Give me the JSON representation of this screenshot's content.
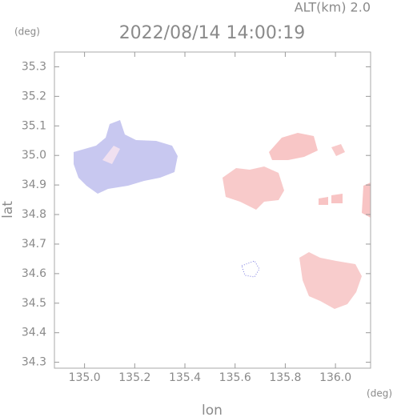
{
  "chart_data": {
    "type": "map",
    "title": "2022/08/14 14:00:19",
    "subtitle": "ALT(km) 2.0",
    "y_unit": "(deg)",
    "x_unit": "(deg)",
    "x_label": "lon",
    "y_label": "lat",
    "xlim": [
      134.88,
      136.14
    ],
    "xticks": [
      {
        "value": 135,
        "label": "135.0"
      },
      135.2,
      135.4,
      135.6,
      135.8,
      {
        "value": 136,
        "label": "136.0"
      }
    ],
    "ylim": [
      34.28,
      35.35
    ],
    "yticks": [
      34.3,
      34.4,
      34.5,
      34.6,
      34.7,
      34.8,
      34.9,
      {
        "value": 35,
        "label": "35.0"
      },
      35.1,
      35.2,
      35.3
    ]
  }
}
